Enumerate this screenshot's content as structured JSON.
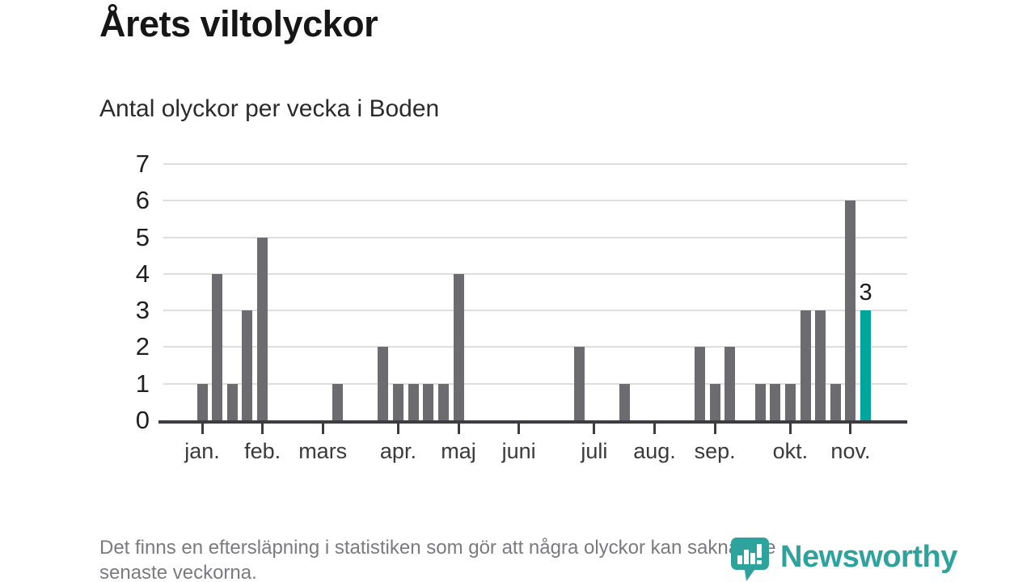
{
  "title": "Årets viltolyckor",
  "subtitle": "Antal olyckor per vecka i Boden",
  "footnote": {
    "line1": "Det finns en eftersläpning i statistiken som gör att några olyckor kan saknas de",
    "line2": "senaste veckorna."
  },
  "logo": {
    "text": "Newsworthy",
    "icon": "speech-bubble-with-bar-chart-and-exclamation",
    "color": "#2da39b"
  },
  "colors": {
    "bar": "#6b6b70",
    "highlight": "#00a69c",
    "axis": "#3d3d41",
    "gridline": "#dedede",
    "text_dark": "#161616",
    "text_gray": "#7b7b7e"
  },
  "chart_data": {
    "type": "bar",
    "title": "Årets viltolyckor",
    "subtitle": "Antal olyckor per vecka i Boden",
    "xlabel": "",
    "ylabel": "",
    "ylim": [
      0,
      7
    ],
    "yticks": [
      0,
      1,
      2,
      3,
      4,
      5,
      6,
      7
    ],
    "grid": "horizontal",
    "legend": "none",
    "x_description": "veckor (weekly bars, jan–nov)",
    "month_ticks": [
      {
        "label": "jan.",
        "slot": 0
      },
      {
        "label": "feb.",
        "slot": 4
      },
      {
        "label": "mars",
        "slot": 8
      },
      {
        "label": "apr.",
        "slot": 13
      },
      {
        "label": "maj",
        "slot": 17
      },
      {
        "label": "juni",
        "slot": 21
      },
      {
        "label": "juli",
        "slot": 26
      },
      {
        "label": "aug.",
        "slot": 30
      },
      {
        "label": "sep.",
        "slot": 34
      },
      {
        "label": "okt.",
        "slot": 39
      },
      {
        "label": "nov.",
        "slot": 43
      }
    ],
    "weeks_values": [
      1,
      4,
      1,
      3,
      5,
      0,
      0,
      0,
      0,
      1,
      0,
      0,
      2,
      1,
      1,
      1,
      1,
      4,
      0,
      0,
      0,
      0,
      0,
      0,
      0,
      2,
      0,
      0,
      1,
      0,
      0,
      0,
      0,
      2,
      1,
      2,
      0,
      1,
      1,
      1,
      3,
      3,
      1,
      6,
      3
    ],
    "highlight": {
      "slot": 44,
      "value": 3,
      "label": "3"
    }
  }
}
